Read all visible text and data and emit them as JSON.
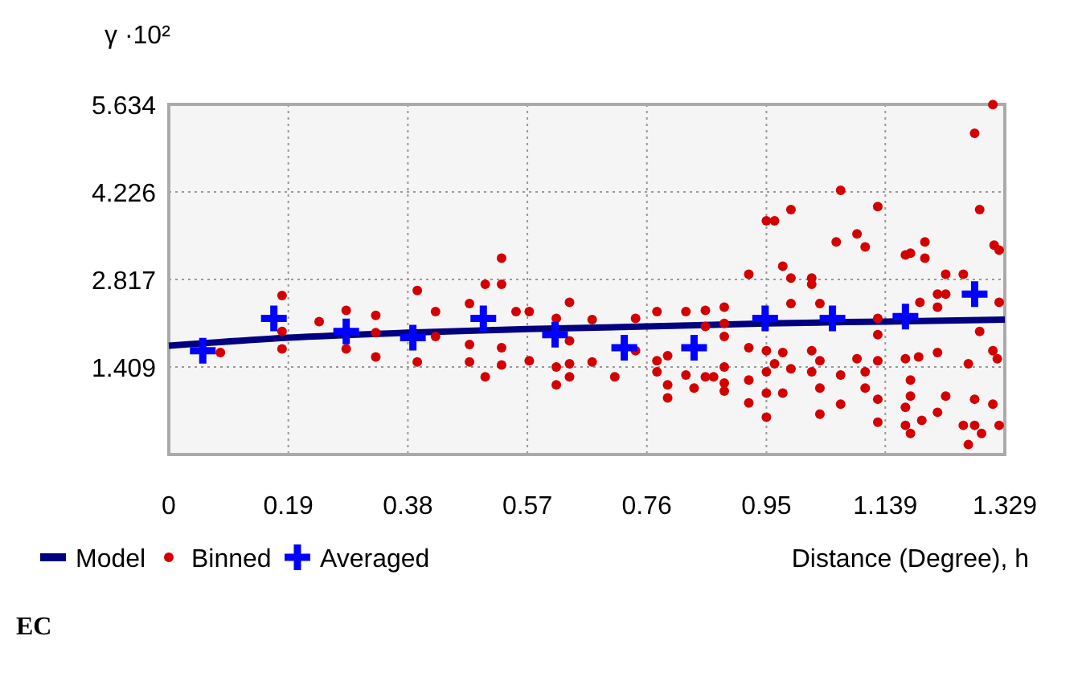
{
  "chart_data": {
    "type": "scatter",
    "ylabel": "γ ·10²",
    "xlabel": "Distance (Degree), h",
    "annotations": [
      "EC"
    ],
    "xlim": [
      0,
      1.329
    ],
    "xticks": [
      0,
      0.19,
      0.38,
      0.57,
      0.76,
      0.95,
      1.139,
      1.329
    ],
    "ylim": [
      0,
      5.634
    ],
    "yticks": [
      1.409,
      2.817,
      4.226,
      5.634
    ],
    "grid": true,
    "legend": "bottom",
    "series": [
      {
        "name": "Model",
        "type": "line",
        "marker": "none",
        "color": "#000080",
        "x": [
          0,
          0.19,
          0.38,
          0.57,
          0.76,
          0.95,
          1.139,
          1.329
        ],
        "values": [
          1.75,
          1.88,
          1.96,
          2.02,
          2.06,
          2.11,
          2.14,
          2.17
        ]
      },
      {
        "name": "Binned",
        "marker": "circle",
        "color": "#d40000",
        "x": [
          0.082,
          0.18,
          0.18,
          0.18,
          0.239,
          0.282,
          0.282,
          0.329,
          0.329,
          0.329,
          0.395,
          0.395,
          0.424,
          0.424,
          0.478,
          0.478,
          0.478,
          0.503,
          0.503,
          0.529,
          0.529,
          0.529,
          0.529,
          0.552,
          0.573,
          0.573,
          0.616,
          0.616,
          0.616,
          0.637,
          0.637,
          0.637,
          0.637,
          0.673,
          0.673,
          0.709,
          0.742,
          0.742,
          0.776,
          0.776,
          0.776,
          0.793,
          0.793,
          0.793,
          0.822,
          0.822,
          0.835,
          0.853,
          0.853,
          0.853,
          0.866,
          0.883,
          0.883,
          0.883,
          0.883,
          0.883,
          0.883,
          0.922,
          0.922,
          0.922,
          0.922,
          0.95,
          0.963,
          0.989,
          0.976,
          0.989,
          0.989,
          0.95,
          0.963,
          0.976,
          0.95,
          0.95,
          0.95,
          0.976,
          0.989,
          1.022,
          1.022,
          1.022,
          1.022,
          1.035,
          1.035,
          1.035,
          1.035,
          1.061,
          1.068,
          1.068,
          1.068,
          1.094,
          1.107,
          1.094,
          1.107,
          1.107,
          1.127,
          1.127,
          1.127,
          1.127,
          1.127,
          1.127,
          1.171,
          1.179,
          1.202,
          1.202,
          1.171,
          1.179,
          1.179,
          1.171,
          1.171,
          1.179,
          1.192,
          1.194,
          1.197,
          1.222,
          1.222,
          1.222,
          1.222,
          1.235,
          1.235,
          1.235,
          1.263,
          1.263,
          1.271,
          1.271,
          1.281,
          1.281,
          1.281,
          1.289,
          1.289,
          1.31,
          1.312,
          1.32,
          1.32,
          1.31,
          1.317,
          1.31,
          1.32,
          1.292
        ],
        "values": [
          1.64,
          2.56,
          1.98,
          1.7,
          2.14,
          2.32,
          1.7,
          2.24,
          1.96,
          1.57,
          2.64,
          1.49,
          2.3,
          1.9,
          2.43,
          1.77,
          1.49,
          2.74,
          1.25,
          3.16,
          2.74,
          1.72,
          1.44,
          2.3,
          2.3,
          1.51,
          2.19,
          1.41,
          1.12,
          2.45,
          1.83,
          1.46,
          1.25,
          2.17,
          1.49,
          1.25,
          2.19,
          1.67,
          2.3,
          1.51,
          1.33,
          1.59,
          1.12,
          0.91,
          2.3,
          1.28,
          1.07,
          2.32,
          2.06,
          1.25,
          1.25,
          2.37,
          2.11,
          1.9,
          1.41,
          1.15,
          1.02,
          2.9,
          1.72,
          1.2,
          0.83,
          3.76,
          3.76,
          3.94,
          3.03,
          2.84,
          2.43,
          1.67,
          1.46,
          1.64,
          1.33,
          0.99,
          0.6,
          0.99,
          1.38,
          2.84,
          2.74,
          1.67,
          1.33,
          2.43,
          1.51,
          1.07,
          0.65,
          3.42,
          4.25,
          0.81,
          1.28,
          3.55,
          3.34,
          1.54,
          1.33,
          1.07,
          3.99,
          2.19,
          1.93,
          1.51,
          0.89,
          0.52,
          3.21,
          3.24,
          3.42,
          3.16,
          1.54,
          1.2,
          0.94,
          0.76,
          0.47,
          0.34,
          1.57,
          2.45,
          0.55,
          2.58,
          2.37,
          1.64,
          0.68,
          2.9,
          2.58,
          0.94,
          2.9,
          0.47,
          1.46,
          0.16,
          5.17,
          0.89,
          0.47,
          3.94,
          1.98,
          5.63,
          3.37,
          3.29,
          2.45,
          1.67,
          1.54,
          0.81,
          0.47,
          0.34
        ]
      },
      {
        "name": "Averaged",
        "marker": "cross",
        "color": "#0000ff",
        "x": [
          0.054,
          0.167,
          0.282,
          0.388,
          0.5,
          0.614,
          0.724,
          0.835,
          0.948,
          1.055,
          1.171,
          1.281
        ],
        "values": [
          1.67,
          2.19,
          1.98,
          1.88,
          2.19,
          1.93,
          1.72,
          1.72,
          2.19,
          2.19,
          2.22,
          2.58
        ]
      }
    ]
  }
}
